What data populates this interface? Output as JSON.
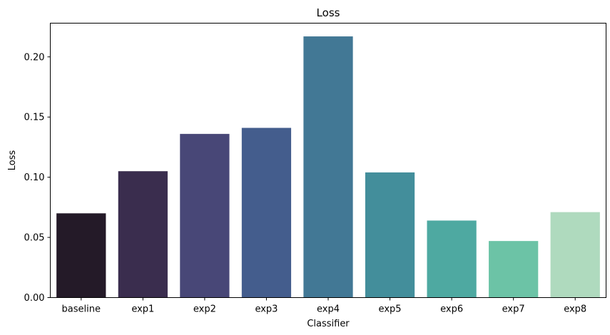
{
  "chart_data": {
    "type": "bar",
    "title": "Loss",
    "xlabel": "Classifier",
    "ylabel": "Loss",
    "categories": [
      "baseline",
      "exp1",
      "exp2",
      "exp3",
      "exp4",
      "exp5",
      "exp6",
      "exp7",
      "exp8"
    ],
    "values": [
      0.07,
      0.105,
      0.136,
      0.141,
      0.217,
      0.104,
      0.064,
      0.047,
      0.071
    ],
    "colors": [
      "#241a28",
      "#3a2d4e",
      "#484777",
      "#445d8d",
      "#427895",
      "#438e9b",
      "#4ea9a1",
      "#6cc3a6",
      "#afdabe"
    ],
    "ylim": [
      0,
      0.228
    ],
    "yticks": [
      "0.00",
      "0.05",
      "0.10",
      "0.15",
      "0.20"
    ],
    "grid": false,
    "legend": "none"
  }
}
